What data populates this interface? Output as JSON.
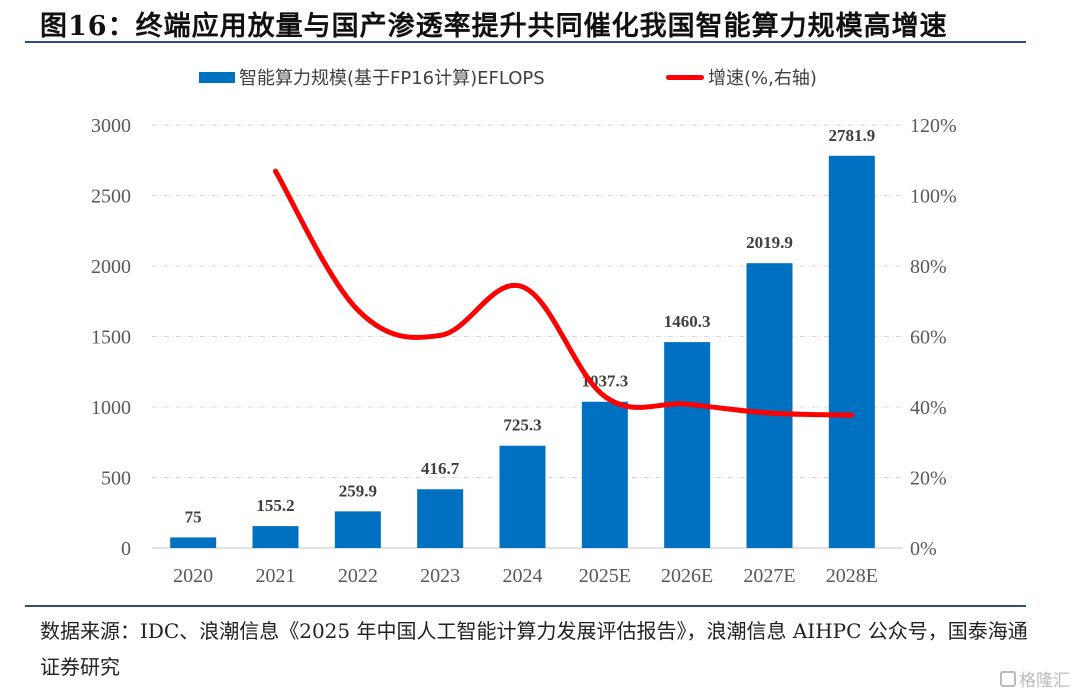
{
  "figure": {
    "title": "图16：终端应用放量与国产渗透率提升共同催化我国智能算力规模高增速",
    "source_text": "数据来源：IDC、浪潮信息《2025 年中国人工智能计算力发展评估报告》，浪潮信息 AIHPC 公众号，国泰海通证券研究",
    "watermark": "格隆汇"
  },
  "chart_data": {
    "type": "bar",
    "title": "图16：终端应用放量与国产渗透率提升共同催化我国智能算力规模高增速",
    "categories": [
      "2020",
      "2021",
      "2022",
      "2023",
      "2024",
      "2025E",
      "2026E",
      "2027E",
      "2028E"
    ],
    "series": [
      {
        "name": "智能算力规模(基于FP16计算)EFLOPS",
        "type": "bar",
        "axis": "left",
        "color": "#0070c0",
        "values": [
          75,
          155.2,
          259.9,
          416.7,
          725.3,
          1037.3,
          1460.3,
          2019.9,
          2781.9
        ],
        "labels": [
          "75",
          "155.2",
          "259.9",
          "416.7",
          "725.3",
          "1037.3",
          "1460.3",
          "2019.9",
          "2781.9"
        ]
      },
      {
        "name": "增速(%,右轴)",
        "type": "line",
        "axis": "right",
        "color": "#ff0000",
        "smooth": true,
        "values": [
          null,
          106.9,
          67.5,
          60.3,
          74.1,
          43.0,
          40.8,
          38.3,
          37.7
        ]
      }
    ],
    "left_axis": {
      "ylim": [
        0,
        3000
      ],
      "ticks": [
        0,
        500,
        1000,
        1500,
        2000,
        2500,
        3000
      ],
      "tick_labels": [
        "0",
        "500",
        "1000",
        "1500",
        "2000",
        "2500",
        "3000"
      ]
    },
    "right_axis": {
      "ylim": [
        0,
        120
      ],
      "ticks": [
        0,
        20,
        40,
        60,
        80,
        100,
        120
      ],
      "tick_labels": [
        "0%",
        "20%",
        "40%",
        "60%",
        "80%",
        "100%",
        "120%"
      ]
    },
    "xlabel": "",
    "ylabel": "",
    "grid": true,
    "legend_position": "top-center"
  }
}
